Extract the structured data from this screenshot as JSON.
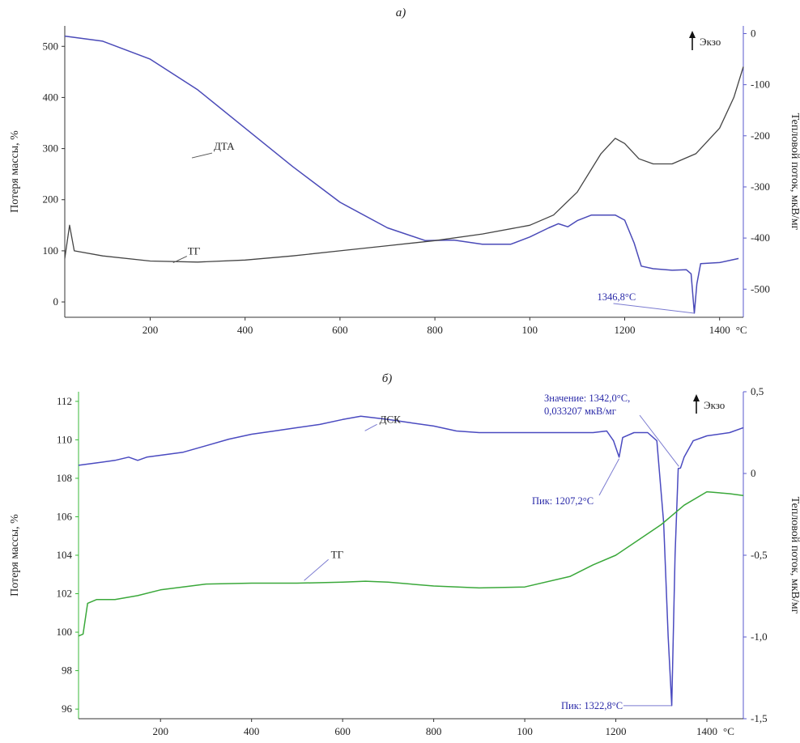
{
  "chart_data": [
    {
      "type": "line",
      "panel_label": "а)",
      "xlabel_unit": "°C",
      "x_ticks": [
        "200",
        "400",
        "600",
        "800",
        "100",
        "1200",
        "1400"
      ],
      "xlim": [
        20,
        1450
      ],
      "ylabel": "Потеря массы, %",
      "ylim": [
        -30,
        540
      ],
      "y_ticks": [
        0,
        100,
        200,
        300,
        400,
        500
      ],
      "y2label": "Тепловой поток, мкВ/мг",
      "y2lim": [
        -555,
        15
      ],
      "y2_ticks": [
        "0",
        "-100",
        "-200",
        "-300",
        "-400",
        "-500"
      ],
      "y2_tick_values": [
        0,
        -100,
        -200,
        -300,
        -400,
        -500
      ],
      "exo_label": "Экзо",
      "series": [
        {
          "name": "ДТА",
          "axis": "right",
          "color": "#4a4ab8",
          "points": [
            [
              20,
              -5
            ],
            [
              100,
              -15
            ],
            [
              200,
              -50
            ],
            [
              300,
              -110
            ],
            [
              400,
              -185
            ],
            [
              500,
              -260
            ],
            [
              600,
              -330
            ],
            [
              700,
              -380
            ],
            [
              780,
              -405
            ],
            [
              840,
              -404
            ],
            [
              900,
              -412
            ],
            [
              960,
              -412
            ],
            [
              1000,
              -398
            ],
            [
              1040,
              -380
            ],
            [
              1060,
              -372
            ],
            [
              1080,
              -378
            ],
            [
              1100,
              -366
            ],
            [
              1130,
              -355
            ],
            [
              1180,
              -355
            ],
            [
              1200,
              -365
            ],
            [
              1220,
              -410
            ],
            [
              1235,
              -455
            ],
            [
              1260,
              -460
            ],
            [
              1300,
              -463
            ],
            [
              1330,
              -462
            ],
            [
              1340,
              -470
            ],
            [
              1346.8,
              -547
            ],
            [
              1352,
              -490
            ],
            [
              1360,
              -450
            ],
            [
              1400,
              -448
            ],
            [
              1440,
              -440
            ]
          ]
        },
        {
          "name": "ТГ",
          "axis": "left",
          "color": "#444444",
          "points": [
            [
              20,
              85
            ],
            [
              30,
              150
            ],
            [
              40,
              100
            ],
            [
              100,
              90
            ],
            [
              200,
              80
            ],
            [
              300,
              78
            ],
            [
              400,
              82
            ],
            [
              500,
              90
            ],
            [
              600,
              100
            ],
            [
              700,
              110
            ],
            [
              800,
              120
            ],
            [
              900,
              133
            ],
            [
              1000,
              150
            ],
            [
              1050,
              170
            ],
            [
              1100,
              215
            ],
            [
              1150,
              290
            ],
            [
              1180,
              320
            ],
            [
              1200,
              310
            ],
            [
              1230,
              280
            ],
            [
              1260,
              270
            ],
            [
              1300,
              270
            ],
            [
              1350,
              290
            ],
            [
              1400,
              340
            ],
            [
              1430,
              400
            ],
            [
              1450,
              460
            ]
          ]
        }
      ],
      "annotations": [
        {
          "text": "ДТА",
          "x": 450,
          "axis": "right",
          "y": -221
        },
        {
          "text": "ТГ",
          "x": 320,
          "axis": "left",
          "y": 80
        },
        {
          "text": "1346,8°С",
          "x": 1346.8,
          "axis": "right",
          "y": -547
        }
      ]
    },
    {
      "type": "line",
      "panel_label": "б)",
      "xlabel_unit": "°С",
      "x_ticks": [
        "200",
        "400",
        "600",
        "800",
        "100",
        "1200",
        "1400"
      ],
      "xlim": [
        20,
        1480
      ],
      "ylabel": "Потеря массы, %",
      "ylim": [
        95.5,
        112.5
      ],
      "y_ticks": [
        96,
        98,
        100,
        102,
        104,
        106,
        108,
        110,
        112
      ],
      "y2label": "Тепловой поток, мкВ/мг",
      "y2lim": [
        -1.5,
        0.5
      ],
      "y2_ticks": [
        "0,5",
        "0",
        "-0,5",
        "-1,0",
        "-1,5"
      ],
      "y2_tick_values": [
        0.5,
        0,
        -0.5,
        -1.0,
        -1.5
      ],
      "exo_label": "Экзо",
      "series": [
        {
          "name": "ДСК",
          "axis": "right",
          "color": "#4a4ac0",
          "points": [
            [
              20,
              0.05
            ],
            [
              60,
              0.065
            ],
            [
              100,
              0.08
            ],
            [
              130,
              0.1
            ],
            [
              150,
              0.08
            ],
            [
              170,
              0.1
            ],
            [
              250,
              0.13
            ],
            [
              300,
              0.17
            ],
            [
              350,
              0.21
            ],
            [
              400,
              0.24
            ],
            [
              450,
              0.26
            ],
            [
              500,
              0.28
            ],
            [
              550,
              0.3
            ],
            [
              600,
              0.33
            ],
            [
              640,
              0.35
            ],
            [
              700,
              0.33
            ],
            [
              750,
              0.31
            ],
            [
              800,
              0.29
            ],
            [
              850,
              0.26
            ],
            [
              900,
              0.25
            ],
            [
              950,
              0.25
            ],
            [
              1000,
              0.25
            ],
            [
              1050,
              0.25
            ],
            [
              1100,
              0.25
            ],
            [
              1150,
              0.25
            ],
            [
              1180,
              0.26
            ],
            [
              1195,
              0.2
            ],
            [
              1207.2,
              0.1
            ],
            [
              1215,
              0.22
            ],
            [
              1240,
              0.25
            ],
            [
              1270,
              0.25
            ],
            [
              1290,
              0.2
            ],
            [
              1305,
              -0.3
            ],
            [
              1315,
              -1.0
            ],
            [
              1322.8,
              -1.42
            ],
            [
              1330,
              -0.5
            ],
            [
              1337,
              0.03
            ],
            [
              1342,
              0.033
            ],
            [
              1350,
              0.1
            ],
            [
              1370,
              0.2
            ],
            [
              1400,
              0.23
            ],
            [
              1450,
              0.25
            ],
            [
              1480,
              0.28
            ]
          ]
        },
        {
          "name": "ТГ",
          "axis": "left",
          "color": "#3aa83a",
          "points": [
            [
              20,
              99.8
            ],
            [
              30,
              99.9
            ],
            [
              40,
              101.5
            ],
            [
              60,
              101.7
            ],
            [
              100,
              101.7
            ],
            [
              150,
              101.9
            ],
            [
              200,
              102.2
            ],
            [
              300,
              102.5
            ],
            [
              400,
              102.55
            ],
            [
              500,
              102.55
            ],
            [
              600,
              102.6
            ],
            [
              650,
              102.65
            ],
            [
              700,
              102.6
            ],
            [
              800,
              102.4
            ],
            [
              900,
              102.3
            ],
            [
              1000,
              102.35
            ],
            [
              1100,
              102.9
            ],
            [
              1150,
              103.5
            ],
            [
              1200,
              104.0
            ],
            [
              1250,
              104.8
            ],
            [
              1300,
              105.6
            ],
            [
              1350,
              106.6
            ],
            [
              1400,
              107.3
            ],
            [
              1450,
              107.2
            ],
            [
              1480,
              107.1
            ]
          ]
        }
      ],
      "annotations": [
        {
          "text": "ДСК",
          "x": 720,
          "axis": "right",
          "y": 0.36
        },
        {
          "text": "ТГ",
          "x": 720,
          "axis": "left",
          "y": 102.6
        },
        {
          "text": "Значение: 1342,0°С,",
          "x": 1342,
          "axis": "right",
          "y": 0.033
        },
        {
          "text": "0,033207 мкВ/мг",
          "x": 1342,
          "axis": "right",
          "y": 0.033
        },
        {
          "text": "Пик: 1207,2°С",
          "x": 1207.2,
          "axis": "right",
          "y": 0.1
        },
        {
          "text": "Пик: 1322,8°С",
          "x": 1322.8,
          "axis": "right",
          "y": -1.42
        }
      ]
    }
  ]
}
